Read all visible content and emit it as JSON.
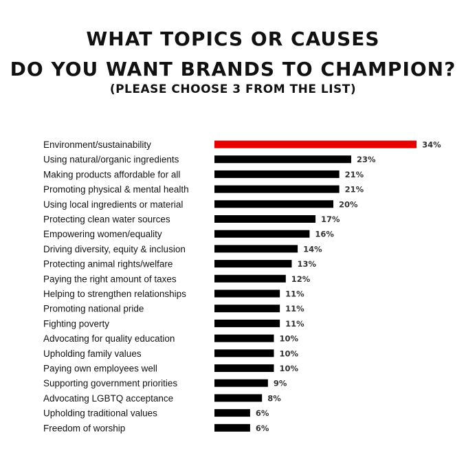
{
  "header": {
    "title_line1": "WHAT TOPICS OR CAUSES",
    "title_line2": "DO YOU WANT BRANDS TO CHAMPION?",
    "subtitle": "(PLEASE CHOOSE 3 FROM THE LIST)"
  },
  "chart_data": {
    "type": "bar",
    "orientation": "horizontal",
    "title": "WHAT TOPICS OR CAUSES DO YOU WANT BRANDS TO CHAMPION?",
    "subtitle": "(PLEASE CHOOSE 3 FROM THE LIST)",
    "categories": [
      "Environment/sustainability",
      "Using natural/organic ingredients",
      "Making products affordable for all",
      "Promoting physical & mental health",
      "Using local ingredients or material",
      "Protecting clean water sources",
      "Empowering women/equality",
      "Driving diversity, equity & inclusion",
      "Protecting animal rights/welfare",
      "Paying the right amount of taxes",
      "Helping to strengthen relationships",
      "Promoting national pride",
      "Fighting poverty",
      "Advocating for quality education",
      "Upholding family values",
      "Paying own employees well",
      "Supporting government priorities",
      "Advocating LGBTQ acceptance",
      "Upholding traditional values",
      "Freedom of worship"
    ],
    "values": [
      34,
      23,
      21,
      21,
      20,
      17,
      16,
      14,
      13,
      12,
      11,
      11,
      11,
      10,
      10,
      10,
      9,
      8,
      6,
      6
    ],
    "value_labels": [
      "34%",
      "23%",
      "21%",
      "21%",
      "20%",
      "17%",
      "16%",
      "14%",
      "13%",
      "12%",
      "11%",
      "11%",
      "11%",
      "10%",
      "10%",
      "10%",
      "9%",
      "8%",
      "6%",
      "6%"
    ],
    "unit": "%",
    "highlight_index": 0,
    "colors": {
      "highlight": "#e60000",
      "bar": "#000000"
    },
    "grid": false,
    "legend": "none"
  }
}
